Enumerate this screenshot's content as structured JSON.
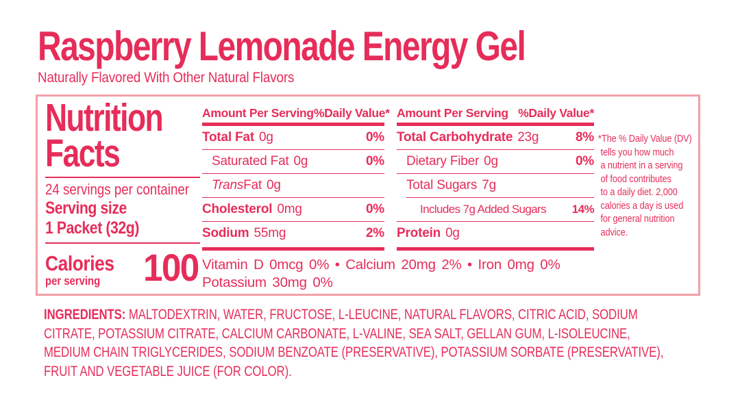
{
  "header": {
    "title": "Raspberry Lemonade Energy Gel",
    "subtitle": "Naturally Flavored With Other Natural Flavors"
  },
  "nutrition_panel": {
    "heading_line1": "Nutrition",
    "heading_line2": "Facts",
    "servings_per_container": "24 servings per container",
    "serving_size_label": "Serving size",
    "serving_size_value": "1 Packet (32g)",
    "calories_label": "Calories",
    "calories_sublabel": "per serving",
    "calories_value": "100",
    "left_table": {
      "header_amount": "Amount Per Serving",
      "header_dv": "%Daily Value*",
      "rows": [
        {
          "name": "Total Fat",
          "amount": "0g",
          "dv": "0%"
        },
        {
          "name": "Saturated Fat",
          "amount": "0g",
          "dv": "0%"
        },
        {
          "name_italic": "Trans",
          "name_rest": " Fat",
          "amount": "0g",
          "dv": ""
        },
        {
          "name": "Cholesterol",
          "amount": "0mg",
          "dv": "0%"
        },
        {
          "name": "Sodium",
          "amount": "55mg",
          "dv": "2%"
        }
      ]
    },
    "right_table": {
      "header_amount": "Amount Per Serving",
      "header_dv": "%Daily Value*",
      "rows": [
        {
          "name": "Total Carbohydrate",
          "amount": "23g",
          "dv": "8%"
        },
        {
          "name": "Dietary Fiber",
          "amount": "0g",
          "dv": "0%"
        },
        {
          "name": "Total Sugars",
          "amount": "7g",
          "dv": ""
        },
        {
          "name": "Includes 7g Added Sugars",
          "amount": "",
          "dv": "14%"
        },
        {
          "name": "Protein",
          "amount": "0g",
          "dv": ""
        }
      ]
    },
    "micronutrients_line1": "Vitamin D 0mcg 0% • Calcium 20mg 2% • Iron 0mg 0%",
    "micronutrients_line2": "Potassium 30mg 0%",
    "footnote": "*The % Daily Value (DV)\n tells you how much\n a nutrient in a serving\n of food contributes\n to a daily diet. 2,000\n calories a day is used\n for general nutrition\n advice."
  },
  "ingredients": {
    "label": "INGREDIENTS:",
    "text": " MALTODEXTRIN, WATER, FRUCTOSE, L-LEUCINE, NATURAL FLAVORS, CITRIC ACID, SODIUM CITRATE, POTASSIUM CITRATE, CALCIUM CARBONATE, L-VALINE, SEA SALT, GELLAN GUM, L-ISOLEUCINE, MEDIUM CHAIN TRIGLYCERIDES, SODIUM BENZOATE (PRESERVATIVE), POTASSIUM SORBATE (PRESERVATIVE), FRUIT AND VEGETABLE JUICE (FOR COLOR)."
  },
  "colors": {
    "accent_red": "#E62D5A",
    "panel_border": "#F2A0A6"
  }
}
